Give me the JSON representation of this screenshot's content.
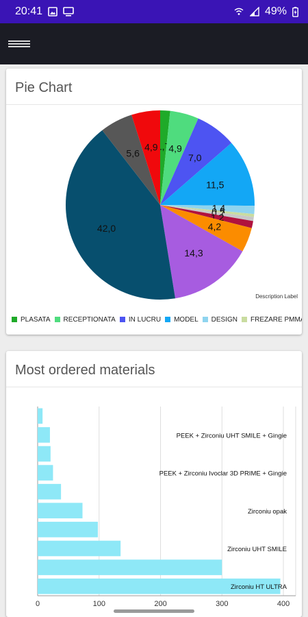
{
  "status_bar": {
    "time": "20:41",
    "battery": "49%",
    "icons": [
      "gallery-icon",
      "cast-icon",
      "wifi-calling-icon",
      "signal-icon",
      "battery-icon"
    ]
  },
  "app_bar": {
    "menu_icon": "hamburger-menu-icon"
  },
  "pie_card": {
    "title": "Pie Chart",
    "description_label": "Description Label"
  },
  "bar_card": {
    "title": "Most ordered materials"
  },
  "chart_data": [
    {
      "type": "pie",
      "title": "Pie Chart",
      "description": "Description Label",
      "legend_position": "bottom-left",
      "slices": [
        {
          "label": "PLASATA",
          "value": 1.7,
          "color": "#1faa29",
          "value_label": "1,7"
        },
        {
          "label": "RECEPTIONATA",
          "value": 4.9,
          "color": "#4fdc7e",
          "value_label": "4,9"
        },
        {
          "label": "IN LUCRU",
          "value": 7.0,
          "color": "#4d54f2",
          "value_label": "7,0"
        },
        {
          "label": "MODEL",
          "value": 11.5,
          "color": "#13a7f5",
          "value_label": "11,5"
        },
        {
          "label": "DESIGN",
          "value": 1.4,
          "color": "#8fd4ef",
          "value_label": "1,4"
        },
        {
          "label": "FREZARE PMMA",
          "value": 0.5,
          "color": "#c9dca0",
          "value_label": "0,5"
        },
        {
          "label": "",
          "value": 0.7,
          "color": "#c8c8c8",
          "value_label": "0,7"
        },
        {
          "label": "",
          "value": 1.2,
          "color": "#b0123e",
          "value_label": "1,2"
        },
        {
          "label": "",
          "value": 4.2,
          "color": "#fb8c00",
          "value_label": "4,2"
        },
        {
          "label": "",
          "value": 14.3,
          "color": "#a75ce0",
          "value_label": "14,3"
        },
        {
          "label": "",
          "value": 42.0,
          "color": "#074f6e",
          "value_label": "42,0"
        },
        {
          "label": "",
          "value": 5.6,
          "color": "#575757",
          "value_label": "5,6"
        },
        {
          "label": "",
          "value": 4.9,
          "color": "#f0090c",
          "value_label": "4,9"
        }
      ]
    },
    {
      "type": "bar",
      "orientation": "horizontal",
      "title": "Most ordered materials",
      "bar_color": "#8ee8f7",
      "xlim": [
        0,
        420
      ],
      "x_ticks": [
        0,
        100,
        200,
        300,
        400
      ],
      "categories": [
        "Zirconiu HT ULTRA",
        "",
        "Zirconiu UHT SMILE",
        "",
        "Zirconiu opak",
        "",
        "PEEK + Zirconiu Ivoclar 3D PRIME + Gingie",
        "",
        "PEEK + Zirconiu UHT SMILE + Gingie",
        ""
      ],
      "values": [
        395,
        300,
        135,
        98,
        73,
        38,
        25,
        21,
        20,
        8
      ]
    }
  ]
}
